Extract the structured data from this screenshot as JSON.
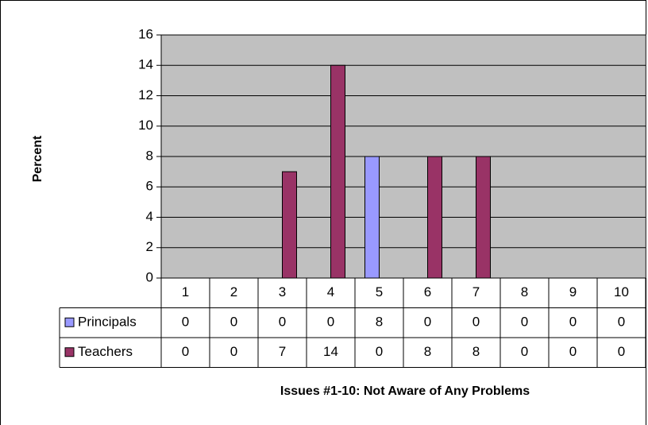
{
  "chart_data": {
    "type": "bar",
    "x_label": "Issues #1-10: Not Aware of Any Problems",
    "y_label": "Percent",
    "categories": [
      "1",
      "2",
      "3",
      "4",
      "5",
      "6",
      "7",
      "8",
      "9",
      "10"
    ],
    "series": [
      {
        "name": "Principals",
        "color": "#9999ff",
        "values": [
          0,
          0,
          0,
          0,
          8,
          0,
          0,
          0,
          0,
          0
        ]
      },
      {
        "name": "Teachers",
        "color": "#993366",
        "values": [
          0,
          0,
          7,
          14,
          0,
          8,
          8,
          0,
          0,
          0
        ]
      }
    ],
    "ylim": [
      0,
      16
    ],
    "yticks": [
      0,
      2,
      4,
      6,
      8,
      10,
      12,
      14,
      16
    ],
    "grid": true
  }
}
